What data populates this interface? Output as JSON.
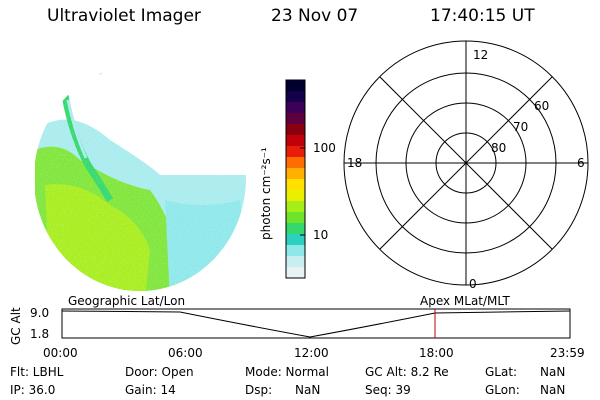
{
  "header": {
    "instrument": "Ultraviolet Imager",
    "date": "23 Nov 07",
    "time": "17:40:15 UT"
  },
  "colorbar": {
    "label": "photon cm⁻²s⁻¹",
    "ticks": [
      "100",
      "10"
    ],
    "colors": [
      "#000030",
      "#15004a",
      "#3c0058",
      "#5e0040",
      "#8a0010",
      "#c2000a",
      "#ea1c0a",
      "#ff6c00",
      "#ffb000",
      "#ffe000",
      "#e8f000",
      "#a6ee1a",
      "#6fe22a",
      "#34d86c",
      "#2ccfc0",
      "#8ee8ea",
      "#c8eef0",
      "#e8f2f2"
    ]
  },
  "polar_plot": {
    "mlt_labels": {
      "top": "12",
      "left": "18",
      "right": "6",
      "bottom": "0"
    },
    "lat_labels": [
      "60",
      "70",
      "80"
    ]
  },
  "timeline": {
    "left_label": "Geographic Lat/Lon",
    "right_label": "Apex MLat/MLT",
    "y_axis_label": "GC Alt",
    "y_ticks": [
      "9.0",
      "1.8"
    ],
    "x_ticks": [
      "00:00",
      "06:00",
      "12:00",
      "18:00",
      "23:59"
    ],
    "current_time_color": "#c00000"
  },
  "info": {
    "flt": "Flt: LBHL",
    "ip": "IP: 36.0",
    "door": "Door: Open",
    "gain": "Gain: 14",
    "mode": "Mode: Normal",
    "dsp": "Dsp:",
    "dsp_val": "NaN",
    "gcalt": "GC Alt: 8.2 Re",
    "seq": "Seq: 39",
    "glat": "GLat:",
    "glat_val": "NaN",
    "glon": "GLon:",
    "glon_val": "NaN"
  }
}
